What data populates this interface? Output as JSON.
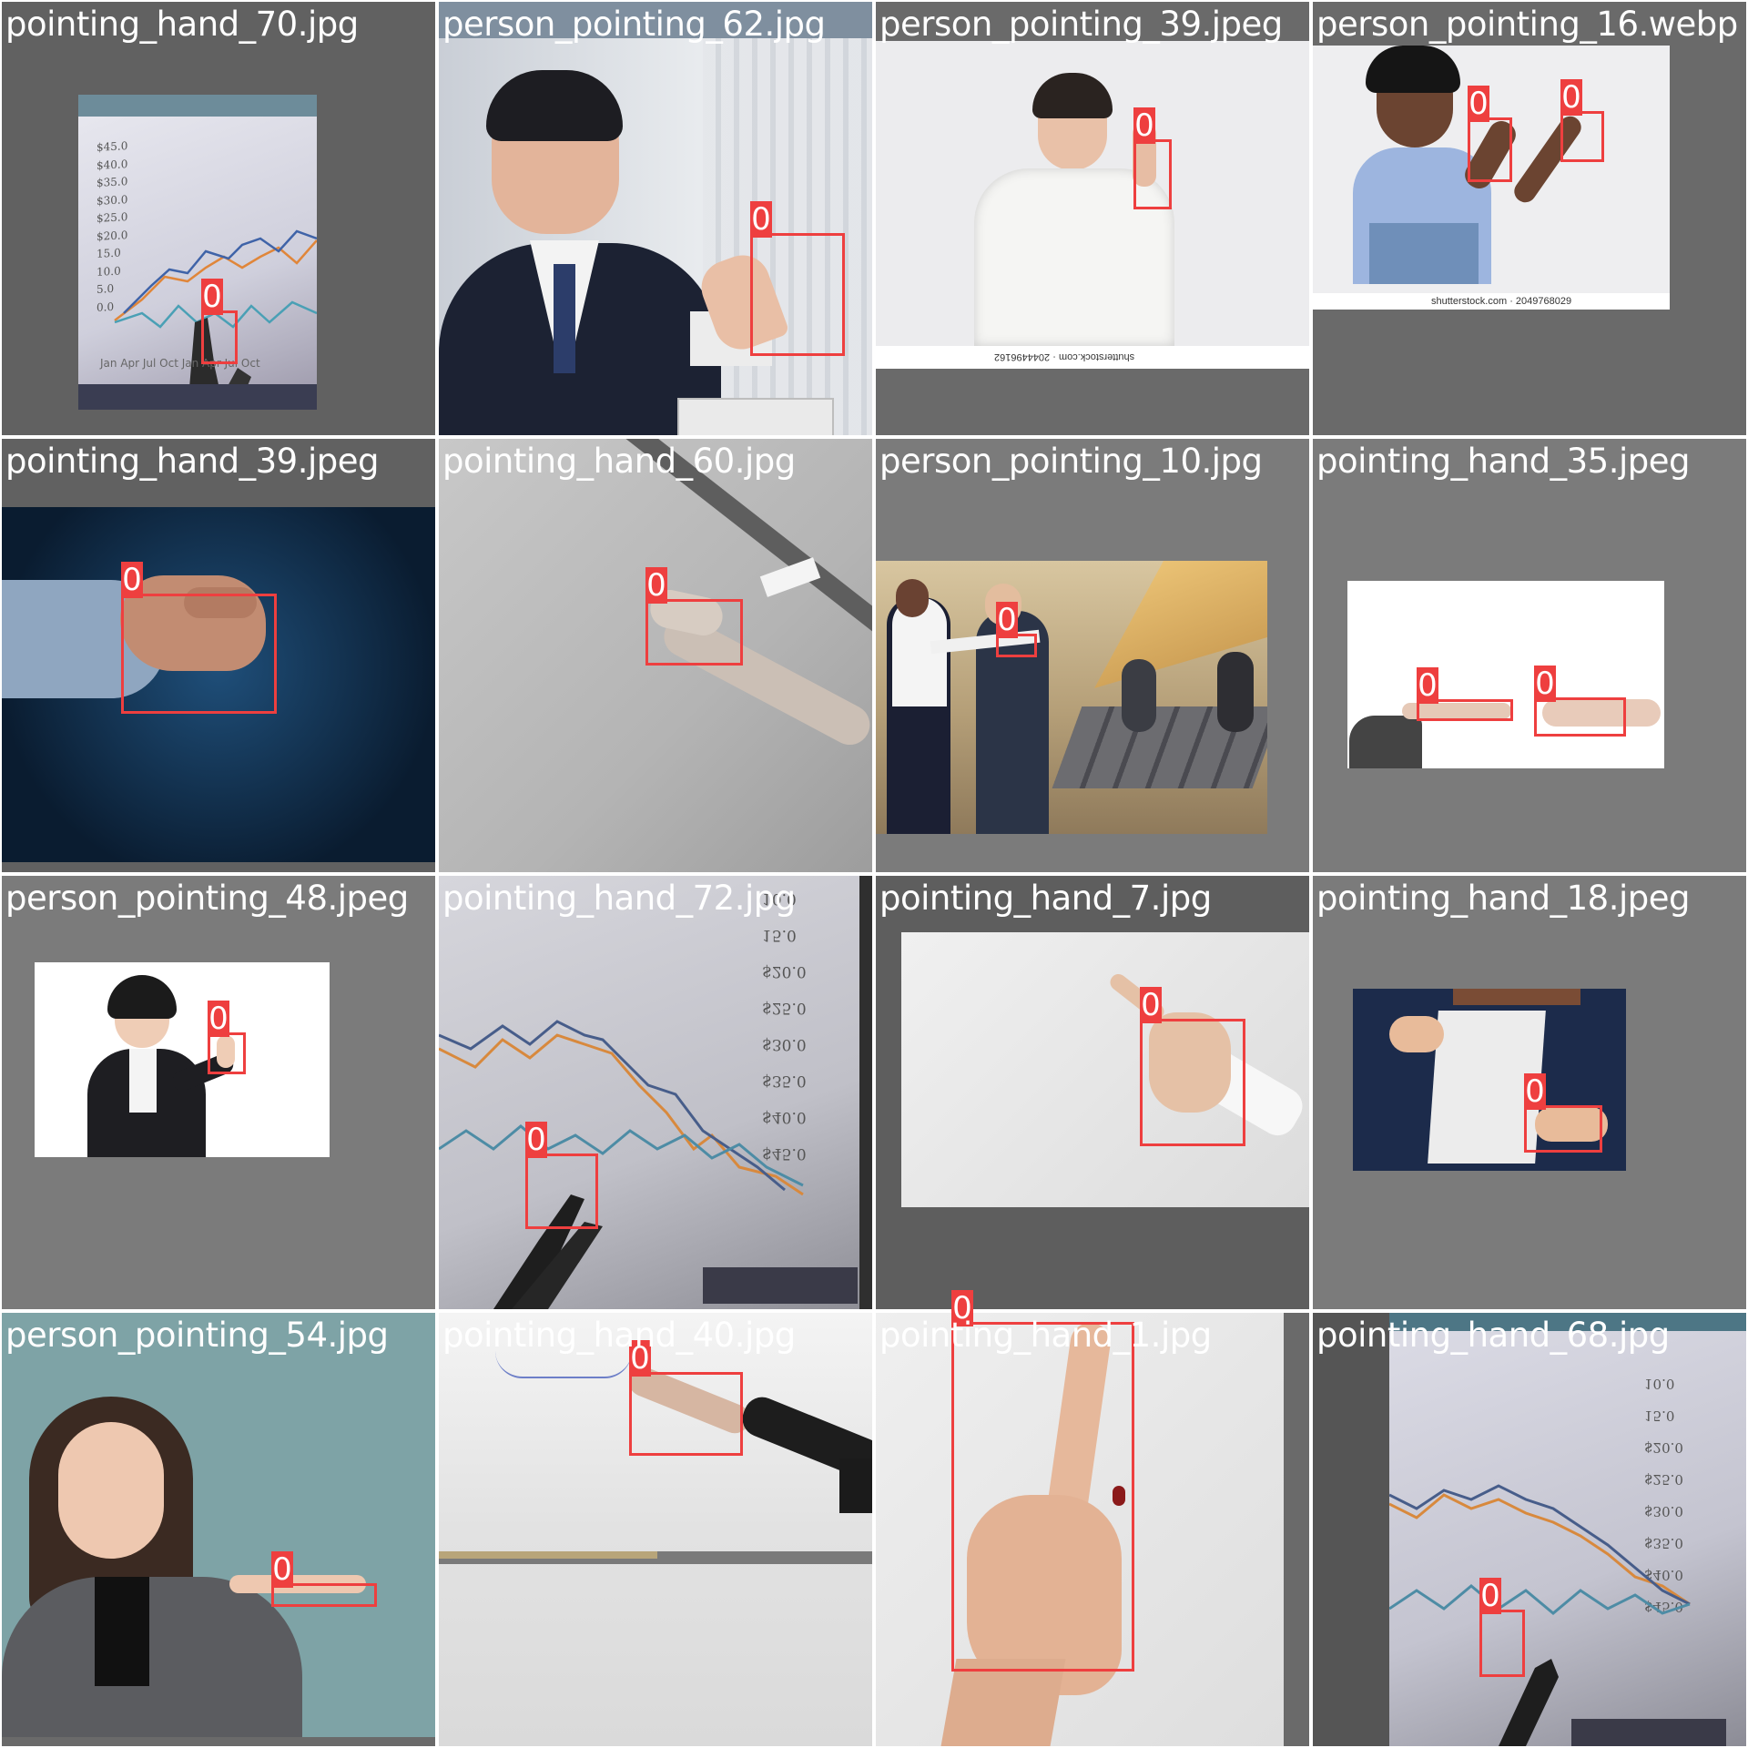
{
  "tiles": [
    {
      "name": "pointing_hand_70.jpg"
    },
    {
      "name": "person_pointing_62.jpg"
    },
    {
      "name": "person_pointing_39.jpeg",
      "watermark": "shutterstock.com · 2044496162"
    },
    {
      "name": "person_pointing_16.webp",
      "watermark": "shutterstock.com · 2049768029"
    },
    {
      "name": "pointing_hand_39.jpeg"
    },
    {
      "name": "pointing_hand_60.jpg"
    },
    {
      "name": "person_pointing_10.jpg"
    },
    {
      "name": "pointing_hand_35.jpeg"
    },
    {
      "name": "person_pointing_48.jpeg"
    },
    {
      "name": "pointing_hand_72.jpg"
    },
    {
      "name": "pointing_hand_7.jpg"
    },
    {
      "name": "pointing_hand_18.jpeg"
    },
    {
      "name": "person_pointing_54.jpg"
    },
    {
      "name": "pointing_hand_40.jpg"
    },
    {
      "name": "pointing_hand_1.jpg"
    },
    {
      "name": "pointing_hand_68.jpg"
    }
  ],
  "class_label": "0",
  "colors": {
    "box": "#ee3f3f",
    "background": "#ffffff",
    "text": "#ffffff"
  },
  "chart_ticks": [
    "$45.0",
    "$40.0",
    "$35.0",
    "$30.0",
    "$25.0",
    "$20.0",
    "15.0",
    "10.0",
    "5.0",
    "0.0"
  ],
  "chart_months": "Jan Apr Jul Oct Jan Apr Jul Oct"
}
